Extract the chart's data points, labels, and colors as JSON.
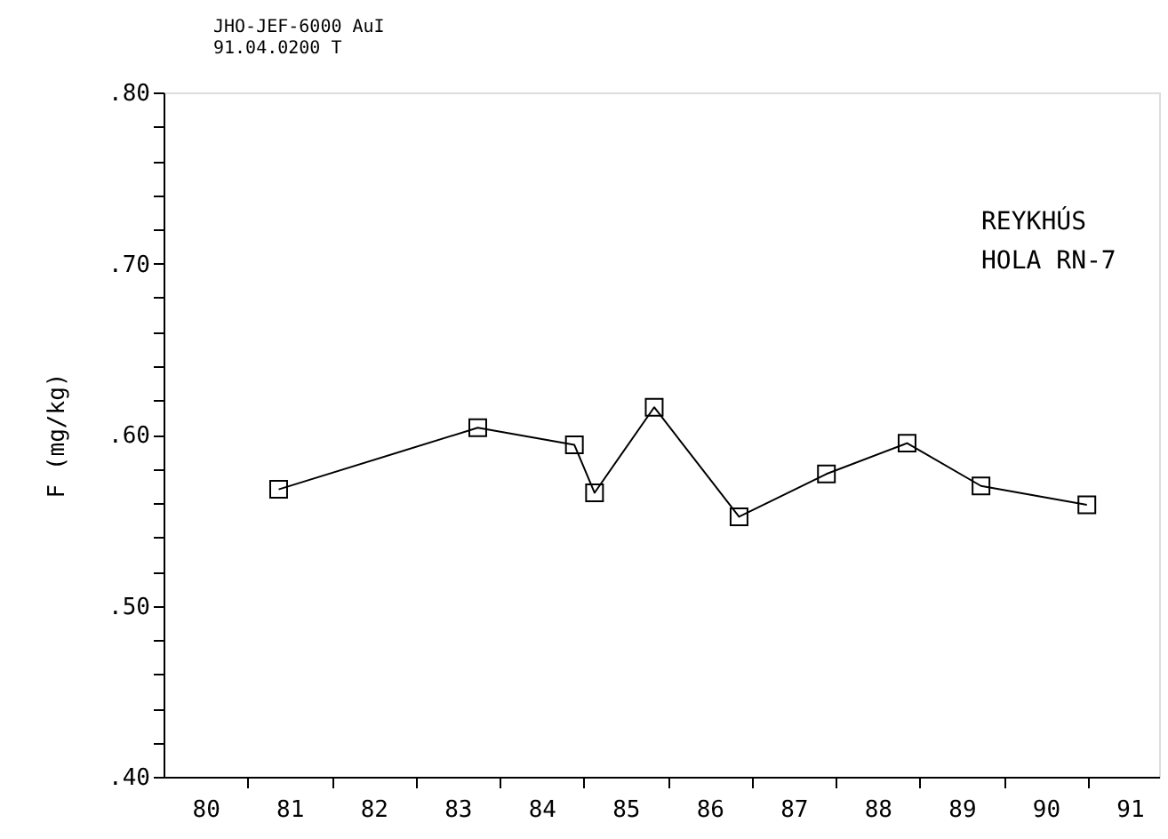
{
  "chart_data": {
    "type": "line",
    "ylabel": "F  (mg/kg)",
    "annotations": [
      "JHO-JEF-6000 AuI\n91.04.0200 T",
      "REYKHÚS\nHOLA RN-7"
    ],
    "x": [
      80.87,
      83.24,
      84.39,
      84.63,
      85.34,
      86.35,
      87.39,
      88.35,
      89.23,
      90.49
    ],
    "series": [
      {
        "color": "#000000",
        "values": [
          0.568,
          0.604,
          0.594,
          0.566,
          0.616,
          0.552,
          0.577,
          0.595,
          0.57,
          0.559
        ]
      }
    ],
    "marker": "square",
    "line_style": "solid",
    "grid": false,
    "xlim": [
      79.5,
      91.35
    ],
    "xticks": [
      {
        "value": 80.5,
        "label": null
      },
      {
        "value": 81.5,
        "label": null
      },
      {
        "value": 82.5,
        "label": null
      },
      {
        "value": 83.5,
        "label": null
      },
      {
        "value": 84.5,
        "label": null
      },
      {
        "value": 85.5,
        "label": null
      },
      {
        "value": 86.5,
        "label": null
      },
      {
        "value": 87.5,
        "label": null
      },
      {
        "value": 88.5,
        "label": null
      },
      {
        "value": 89.5,
        "label": null
      },
      {
        "value": 90.5,
        "label": null
      },
      80,
      81,
      82,
      83,
      84,
      85,
      86,
      87,
      88,
      89,
      90,
      91
    ],
    "ylim": [
      0.4,
      0.8
    ],
    "yticks": [
      {
        "value": 0.4,
        "label": ".40"
      },
      {
        "value": 0.42,
        "label": null
      },
      {
        "value": 0.44,
        "label": null
      },
      {
        "value": 0.46,
        "label": null
      },
      {
        "value": 0.48,
        "label": null
      },
      {
        "value": 0.5,
        "label": ".50"
      },
      {
        "value": 0.52,
        "label": null
      },
      {
        "value": 0.54,
        "label": null
      },
      {
        "value": 0.56,
        "label": null
      },
      {
        "value": 0.58,
        "label": null
      },
      {
        "value": 0.6,
        "label": ".60"
      },
      {
        "value": 0.62,
        "label": null
      },
      {
        "value": 0.64,
        "label": null
      },
      {
        "value": 0.66,
        "label": null
      },
      {
        "value": 0.68,
        "label": null
      },
      {
        "value": 0.7,
        "label": ".70"
      },
      {
        "value": 0.72,
        "label": null
      },
      {
        "value": 0.74,
        "label": null
      },
      {
        "value": 0.76,
        "label": null
      },
      {
        "value": 0.78,
        "label": null
      },
      {
        "value": 0.8,
        "label": ".80"
      }
    ]
  }
}
